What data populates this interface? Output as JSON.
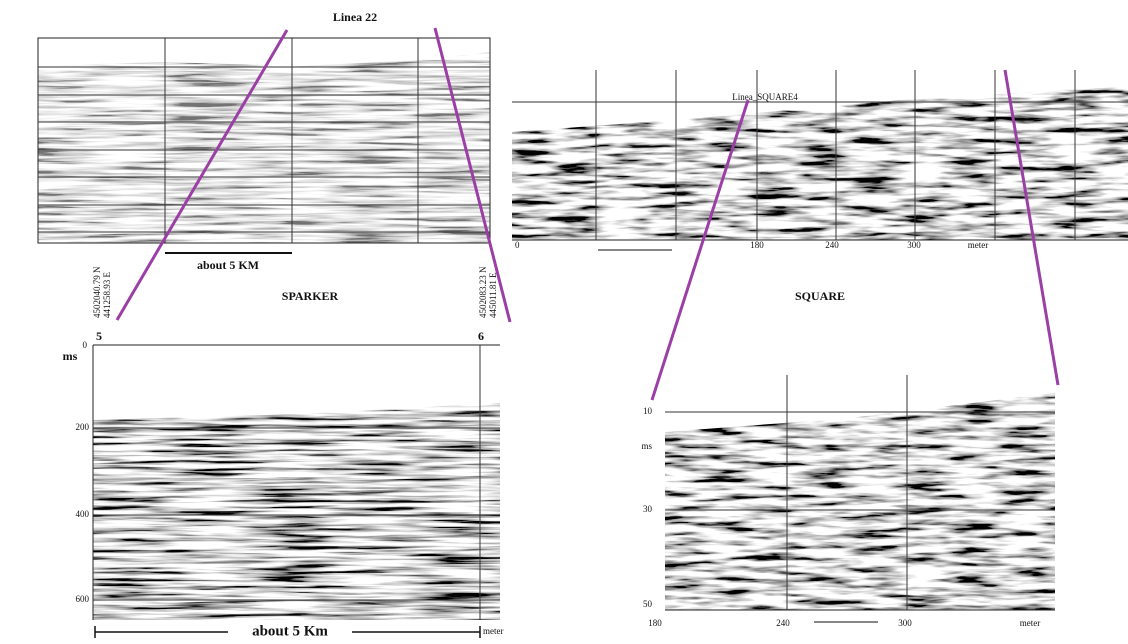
{
  "sparker_overview": {
    "title": "Linea 22",
    "scale_label": "about 5 KM"
  },
  "square_overview": {
    "title": "Linea_SQUARE4",
    "x_labels": [
      "0",
      "180",
      "240",
      "300",
      "meter"
    ]
  },
  "captions": {
    "sparker": "SPARKER",
    "square": "SQUARE"
  },
  "coordinates": {
    "start": [
      "4502040.79 N",
      "441258.93 E"
    ],
    "end": [
      "4502083.23 N",
      "445011.81 E"
    ]
  },
  "sparker_detail": {
    "traces": [
      "5",
      "6"
    ],
    "y_unit": "ms",
    "y_labels": [
      "0",
      "200",
      "400",
      "600"
    ],
    "scale_label": "about 5 Km",
    "x_unit": "meter"
  },
  "square_detail": {
    "y_unit": "ms",
    "y_labels": [
      "10",
      "30",
      "50"
    ],
    "x_labels": [
      "180",
      "240",
      "300"
    ],
    "x_unit": "meter"
  }
}
